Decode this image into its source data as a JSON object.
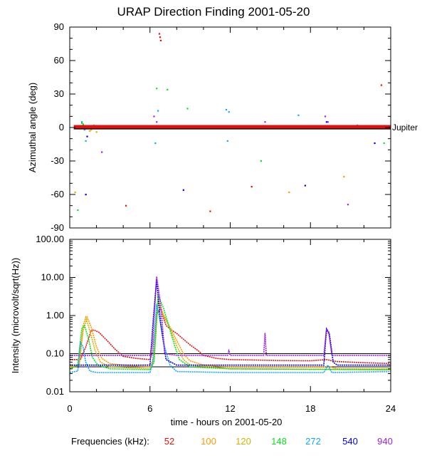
{
  "title": "URAP Direction Finding  2001-05-20",
  "colors": {
    "52": "#e01010",
    "100": "#ff9900",
    "120": "#d4b000",
    "148": "#10e020",
    "272": "#10a8ff",
    "540": "#0000e0",
    "940": "#a020f0",
    "axis": "#000000"
  },
  "legend": {
    "label": "Frequencies (kHz):",
    "items": [
      {
        "text": "52",
        "color": "#e01010"
      },
      {
        "text": "100",
        "color": "#ff9900"
      },
      {
        "text": "120",
        "color": "#d4b000"
      },
      {
        "text": "148",
        "color": "#10e020"
      },
      {
        "text": "272",
        "color": "#10a8ff"
      },
      {
        "text": "540",
        "color": "#0000e0"
      },
      {
        "text": "940",
        "color": "#a020f0"
      }
    ]
  },
  "chart_data": [
    {
      "type": "scatter",
      "panel": "top",
      "ylabel": "Azimuthal angle (deg)",
      "xlim": [
        0,
        24
      ],
      "ylim": [
        -90,
        90
      ],
      "yticks": [
        90,
        60,
        30,
        0,
        -30,
        -60,
        -90
      ],
      "reference_line": {
        "name": "Jupiter",
        "value": 0,
        "label": "Jupiter"
      },
      "series": [
        {
          "name": "52",
          "points": [
            [
              6.7,
              84
            ],
            [
              6.75,
              81
            ],
            [
              6.8,
              78
            ],
            [
              10.5,
              -75
            ],
            [
              23.3,
              38
            ],
            [
              2.2,
              1
            ],
            [
              3,
              1
            ],
            [
              4,
              1
            ],
            [
              5,
              1
            ],
            [
              9,
              1
            ],
            [
              11,
              1
            ],
            [
              13,
              1
            ],
            [
              17,
              1
            ],
            [
              20,
              1
            ],
            [
              22,
              1
            ],
            [
              4.2,
              -70
            ],
            [
              13.6,
              -53
            ]
          ]
        },
        {
          "name": "100",
          "points": [
            [
              1.3,
              1
            ],
            [
              1.5,
              -3
            ],
            [
              20.5,
              -44
            ],
            [
              16.4,
              -58
            ]
          ]
        },
        {
          "name": "120",
          "points": [
            [
              1.6,
              -2
            ],
            [
              1.8,
              2
            ],
            [
              2.0,
              -4
            ],
            [
              0.4,
              -58
            ]
          ]
        },
        {
          "name": "148",
          "points": [
            [
              1.0,
              3
            ],
            [
              1.2,
              -1
            ],
            [
              6.5,
              35
            ],
            [
              7.3,
              34
            ],
            [
              8.8,
              17
            ],
            [
              14.3,
              -30
            ],
            [
              23.5,
              -14
            ],
            [
              0.9,
              4
            ],
            [
              0.6,
              -74
            ]
          ]
        },
        {
          "name": "272",
          "points": [
            [
              0.9,
              5
            ],
            [
              1.1,
              -2
            ],
            [
              6.4,
              -14
            ],
            [
              6.6,
              15
            ],
            [
              11.7,
              16
            ],
            [
              11.9,
              14
            ],
            [
              11.8,
              -12
            ],
            [
              17.1,
              11
            ],
            [
              21.5,
              2
            ],
            [
              1.2,
              -12
            ]
          ]
        },
        {
          "name": "540",
          "points": [
            [
              1.2,
              -60
            ],
            [
              8.5,
              -56
            ],
            [
              17.6,
              -52
            ],
            [
              22.8,
              -14
            ],
            [
              19.2,
              5
            ],
            [
              6.8,
              0
            ],
            [
              1.3,
              -8
            ]
          ]
        },
        {
          "name": "940",
          "points": [
            [
              6.3,
              10
            ],
            [
              6.5,
              5
            ],
            [
              6.7,
              0
            ],
            [
              14.6,
              5
            ],
            [
              14.7,
              0
            ],
            [
              19.1,
              10
            ],
            [
              19.3,
              5
            ],
            [
              2.4,
              -22
            ],
            [
              20.8,
              -69
            ]
          ]
        }
      ]
    },
    {
      "type": "line",
      "panel": "bottom",
      "ylabel": "Intensity (microvolt/sqrt(Hz))",
      "xlabel": "time - hours on 2001-05-20",
      "xlim": [
        0,
        24
      ],
      "ylim": [
        0.01,
        100
      ],
      "yscale": "log",
      "xticks": [
        0,
        6,
        12,
        18,
        24
      ],
      "ytick_labels": [
        "100.00",
        "10.00",
        "1.00",
        "0.10",
        "0.01"
      ],
      "series": [
        {
          "name": "52",
          "x": [
            0,
            0.8,
            1.2,
            1.6,
            1.8,
            2.2,
            2.8,
            3.4,
            4,
            5,
            6,
            6.2,
            6.5,
            6.8,
            7.2,
            7.6,
            8,
            8.5,
            9,
            9.6,
            10,
            11,
            12,
            14,
            16,
            18,
            19.2,
            19.6,
            20,
            21,
            22,
            24
          ],
          "values": [
            0.07,
            0.07,
            0.15,
            0.4,
            0.42,
            0.36,
            0.22,
            0.13,
            0.085,
            0.075,
            0.07,
            0.11,
            1.1,
            1.5,
            0.55,
            0.42,
            0.34,
            0.24,
            0.17,
            0.12,
            0.09,
            0.075,
            0.07,
            0.068,
            0.066,
            0.065,
            0.07,
            0.065,
            0.062,
            0.06,
            0.058,
            0.055
          ]
        },
        {
          "name": "100",
          "x": [
            0,
            0.7,
            1.0,
            1.3,
            1.6,
            2,
            2.4,
            3,
            4,
            6,
            6.3,
            6.6,
            7,
            7.5,
            8,
            8.5,
            9,
            10,
            12,
            18,
            19.5,
            20,
            24
          ],
          "values": [
            0.045,
            0.05,
            0.4,
            0.9,
            0.5,
            0.15,
            0.075,
            0.055,
            0.05,
            0.045,
            0.08,
            2.2,
            1.0,
            0.5,
            0.22,
            0.1,
            0.065,
            0.05,
            0.045,
            0.045,
            0.045,
            0.04,
            0.04
          ]
        },
        {
          "name": "120",
          "x": [
            0,
            0.7,
            1.0,
            1.2,
            1.5,
            1.9,
            2.3,
            3,
            6,
            6.3,
            6.6,
            7,
            7.5,
            8,
            8.5,
            9,
            12,
            24
          ],
          "values": [
            0.04,
            0.05,
            0.55,
            0.9,
            0.4,
            0.12,
            0.06,
            0.045,
            0.04,
            0.06,
            2.6,
            1.1,
            0.45,
            0.16,
            0.07,
            0.05,
            0.04,
            0.038
          ]
        },
        {
          "name": "148",
          "x": [
            0,
            0.6,
            0.9,
            1.1,
            1.4,
            1.7,
            2.1,
            3,
            6,
            6.3,
            6.6,
            7,
            7.4,
            7.8,
            8.2,
            9,
            12,
            24
          ],
          "values": [
            0.04,
            0.05,
            0.45,
            0.55,
            0.25,
            0.08,
            0.05,
            0.04,
            0.038,
            0.06,
            3.5,
            1.6,
            0.55,
            0.18,
            0.07,
            0.045,
            0.04,
            0.038
          ]
        },
        {
          "name": "272",
          "x": [
            0,
            0.6,
            0.8,
            1.0,
            1.2,
            1.5,
            2,
            6,
            6.2,
            6.5,
            6.8,
            7.1,
            7.5,
            8,
            12,
            19,
            19.3,
            19.6,
            24
          ],
          "values": [
            0.032,
            0.035,
            0.2,
            0.15,
            0.06,
            0.035,
            0.032,
            0.032,
            0.06,
            2.0,
            0.6,
            0.15,
            0.05,
            0.034,
            0.032,
            0.032,
            0.05,
            0.032,
            0.034
          ]
        },
        {
          "name": "540",
          "x": [
            0,
            1,
            2,
            6,
            6.2,
            6.5,
            6.8,
            7.2,
            8,
            12,
            19,
            19.2,
            19.4,
            19.7,
            20,
            24
          ],
          "values": [
            0.05,
            0.05,
            0.05,
            0.05,
            0.5,
            9.0,
            0.6,
            0.07,
            0.05,
            0.05,
            0.05,
            0.45,
            0.35,
            0.06,
            0.05,
            0.05
          ]
        },
        {
          "name": "940",
          "x": [
            0,
            2,
            6,
            6.2,
            6.5,
            6.8,
            7.1,
            8,
            11.8,
            11.9,
            12.0,
            14.5,
            14.6,
            14.7,
            19,
            19.2,
            19.4,
            19.6,
            24
          ],
          "values": [
            0.09,
            0.09,
            0.09,
            0.2,
            10.5,
            2.0,
            0.1,
            0.09,
            0.09,
            0.12,
            0.09,
            0.09,
            0.35,
            0.09,
            0.09,
            0.45,
            0.3,
            0.09,
            0.09
          ]
        }
      ],
      "reference_lines": [
        0.1,
        0.045
      ]
    }
  ]
}
